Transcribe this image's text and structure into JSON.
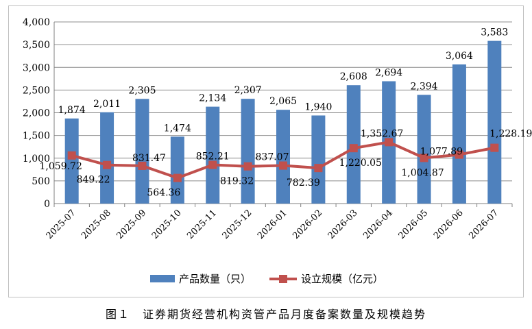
{
  "caption": "图１　证券期货经营机构资管产品月度备案数量及规模趋势",
  "chart_data": {
    "type": "bar",
    "title": "",
    "categories": [
      "2025-07",
      "2025-08",
      "2025-09",
      "2025-10",
      "2025-11",
      "2025-12",
      "2026-01",
      "2026-02",
      "2026-03",
      "2026-04",
      "2026-05",
      "2026-06",
      "2026-07"
    ],
    "ylim": [
      0,
      4000
    ],
    "yticks": [
      "0",
      "500",
      "1,000",
      "1,500",
      "2,000",
      "2,500",
      "3,000",
      "3,500",
      "4,000"
    ],
    "grid": true,
    "legend_position": "bottom",
    "series": [
      {
        "name": "产品数量（只）",
        "type": "bar",
        "color": "#4f81bd",
        "values": [
          1874,
          2011,
          2305,
          1474,
          2134,
          2307,
          2065,
          1940,
          2608,
          2694,
          2394,
          3064,
          3583
        ],
        "labels": [
          "1,874",
          "2,011",
          "2,305",
          "1,474",
          "2,134",
          "2,307",
          "2,065",
          "1,940",
          "2,608",
          "2,694",
          "2,394",
          "3,064",
          "3,583"
        ]
      },
      {
        "name": "设立规模（亿元）",
        "type": "line",
        "color": "#c0504d",
        "values": [
          1059.72,
          849.22,
          831.47,
          564.36,
          852.21,
          819.32,
          837.07,
          782.39,
          1220.05,
          1352.67,
          1004.87,
          1077.89,
          1228.19
        ],
        "labels": [
          "1,059.72",
          "849.22",
          "831.47",
          "564.36",
          "852.21",
          "819.32",
          "837.07",
          "782.39",
          "1,220.05",
          "1,352.67",
          "1,004.87",
          "1,077.89",
          "1,228.19"
        ]
      }
    ]
  }
}
